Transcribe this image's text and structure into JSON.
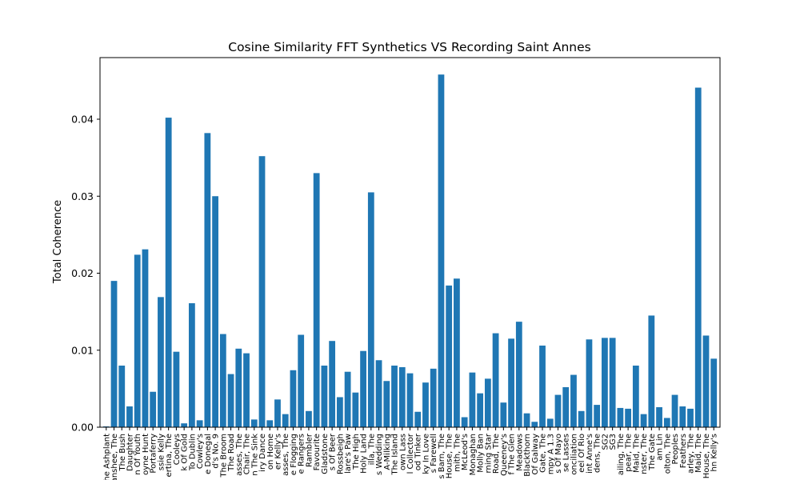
{
  "chart_data": {
    "type": "bar",
    "title": "Cosine Similarity FFT Synthetics VS Recording Saint Annes",
    "xlabel": "",
    "ylabel": "Total Coherence",
    "ylim": [
      0,
      0.048
    ],
    "yticks": [
      0.0,
      0.01,
      0.02,
      0.03,
      0.04
    ],
    "ytick_labels": [
      "0.00",
      "0.01",
      "0.02",
      "0.03",
      "0.04"
    ],
    "color": "#1f77b4",
    "grid": false,
    "categories": [
      "The Ashplant",
      "Banshee, The",
      "The Bush",
      "Daughter",
      "n Of Youth",
      "oyne Hunt",
      "Portaferry",
      "ssie Kelly",
      "ertina, The",
      "Cooleys",
      "k Of Gold",
      "To Dublin",
      "Cowley's",
      "e Donegal",
      "d's No. 9",
      "The Broom",
      "The Road",
      "asses, The",
      "Chair, The",
      "n The Sink",
      "iry Dance",
      "on Home",
      "er Kelly's",
      "asses, The",
      "e Flogging",
      "e Rangers",
      "Rambler",
      "Favourite",
      "Gladstone",
      "s Of Beer",
      "Rossbeigh",
      "lare's Paw",
      "The High",
      "Holy Land",
      "illa, The",
      "s Wedding",
      "A-Milking",
      "The Island",
      "own Lass",
      "l Collector",
      "od Tinker",
      "ky In Love",
      "s Farewell",
      "s Barn, The",
      "House, The",
      "mith, The",
      "McLeod's",
      "Monaghan",
      "Molly Ban",
      "rning Star",
      "Road, The",
      "Queeney's",
      "f The Glen",
      "Meadows",
      "Blackthorn",
      "Of Galway",
      "Gate, The",
      "mpy A 1.3",
      "s Of Mayo",
      "se Lasses",
      "onciliation",
      "eel Of Rio",
      "int Anne's",
      "dens, The",
      "SG2",
      "SG3",
      "ailing, The",
      "pear, The",
      "Maid, The",
      "nster, The",
      "The Gate",
      "am Lin",
      "olton, The",
      "Peoples",
      "Feathers",
      "arley, The",
      "Maid, The",
      "House, The",
      "hn Kelly's"
    ],
    "values": [
      0.0001,
      0.019,
      0.008,
      0.0027,
      0.0224,
      0.0231,
      0.0046,
      0.0169,
      0.0402,
      0.0098,
      0.0005,
      0.0161,
      0.0009,
      0.0382,
      0.03,
      0.0121,
      0.0069,
      0.0102,
      0.0096,
      0.001,
      0.0352,
      0.0009,
      0.0036,
      0.0017,
      0.0074,
      0.012,
      0.0021,
      0.033,
      0.008,
      0.0112,
      0.0039,
      0.0072,
      0.0045,
      0.0099,
      0.0305,
      0.0087,
      0.006,
      0.008,
      0.0078,
      0.007,
      0.002,
      0.0058,
      0.0076,
      0.0458,
      0.0184,
      0.0193,
      0.0013,
      0.0071,
      0.0044,
      0.0063,
      0.0122,
      0.0032,
      0.0115,
      0.0137,
      0.0018,
      0.0007,
      0.0106,
      0.0011,
      0.0042,
      0.0052,
      0.0068,
      0.0021,
      0.0114,
      0.0029,
      0.0116,
      0.0116,
      0.0025,
      0.0024,
      0.008,
      0.0017,
      0.0145,
      0.0026,
      0.0012,
      0.0042,
      0.0027,
      0.0024,
      0.0441,
      0.0119,
      0.0089
    ]
  }
}
